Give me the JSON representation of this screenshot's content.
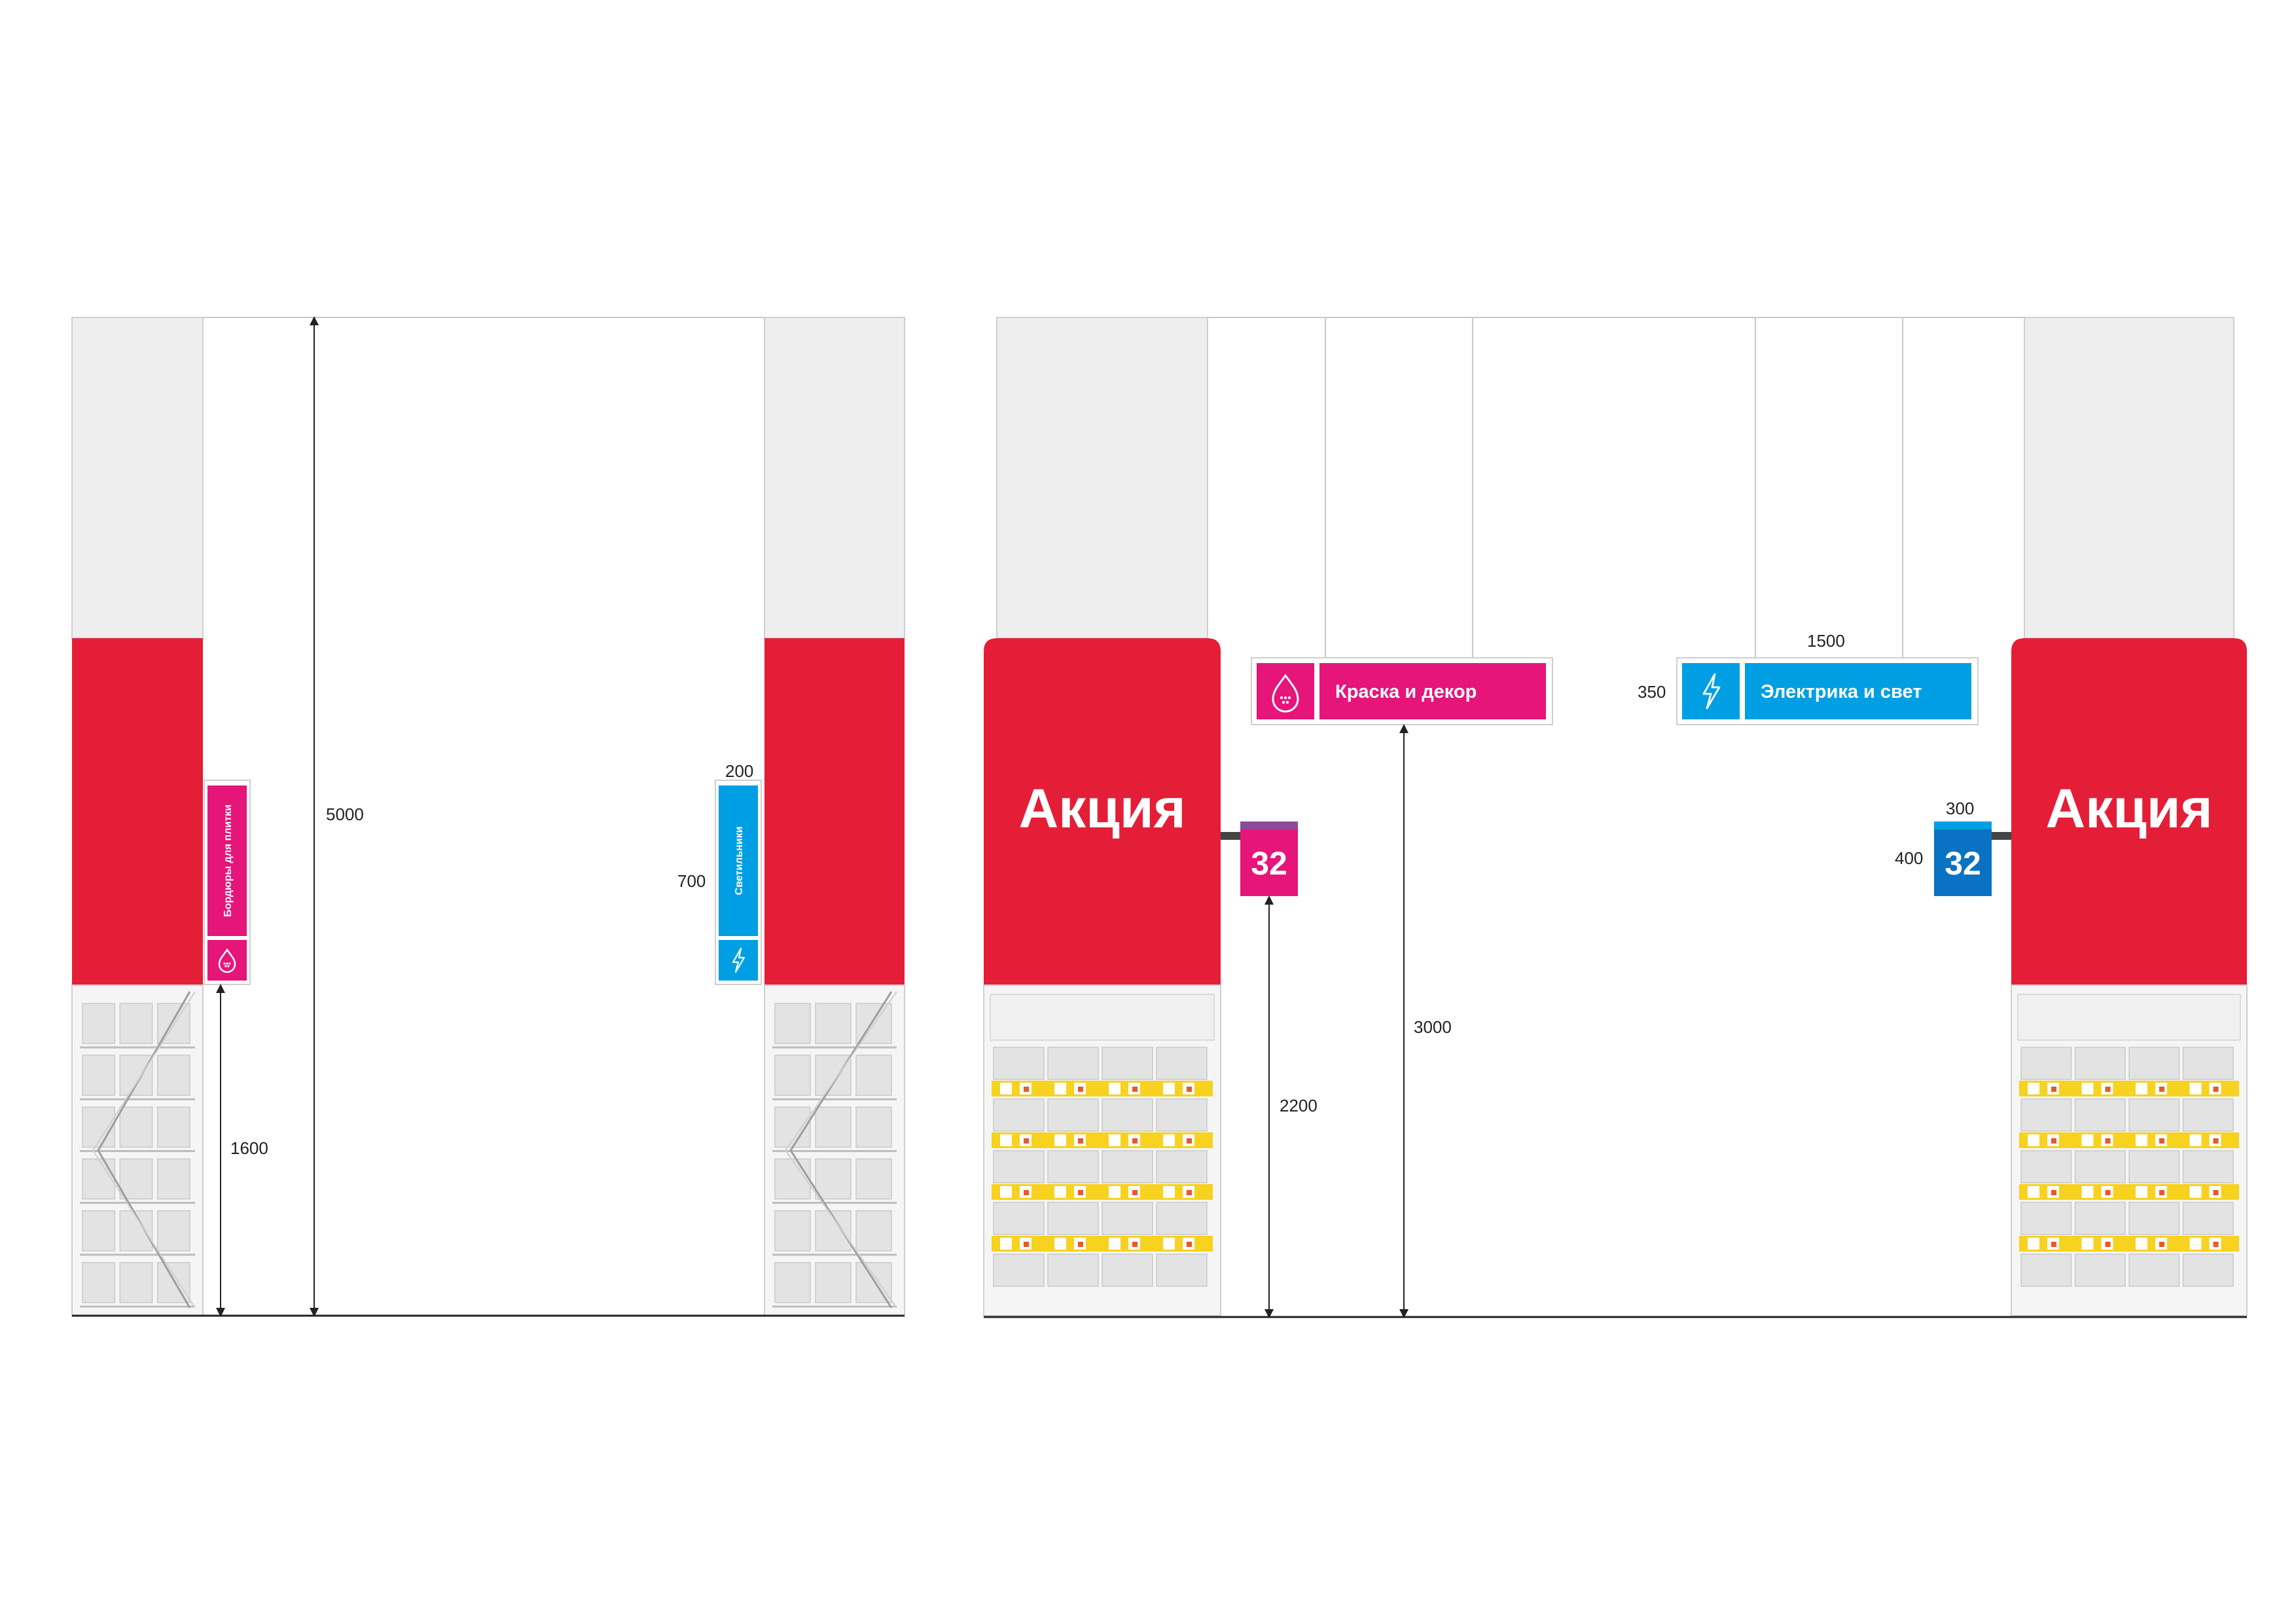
{
  "colors": {
    "promo_red": "#e41e37",
    "paint_magenta": "#e5157a",
    "electric_cyan": "#009fe3",
    "aisle_blue": "#0a72c3",
    "aisle_band_purple": "#8a4b9b",
    "price_yellow": "#f7d21e",
    "wall_grey": "#eeeeee",
    "shelf_grey": "#dddddd",
    "bracket_dark": "#444444"
  },
  "left_elevation": {
    "height_total": "5000",
    "sign_bottom_height": "1600",
    "sign_width": "200",
    "sign_height": "700",
    "sign_left": {
      "label": "Бордюры для плитки",
      "icon": "droplet-icon",
      "color": "#e5157a"
    },
    "sign_right": {
      "label": "Светильники",
      "icon": "lightning-icon",
      "color": "#009fe3"
    }
  },
  "right_elevation": {
    "promo_label_left": "Акция",
    "promo_label_right": "Акция",
    "aisle_number_left": "32",
    "aisle_number_right": "32",
    "aisle_sign_width": "300",
    "aisle_sign_height": "400",
    "aisle_sign_bottom_height": "2200",
    "hanging_sign_bottom_height": "3000",
    "hanging_sign_length": "1500",
    "hanging_sign_height": "350",
    "hanging_sign_left": {
      "label": "Краска и декор",
      "icon": "droplet-icon",
      "color": "#e5157a"
    },
    "hanging_sign_right": {
      "label": "Электрика и свет",
      "icon": "lightning-icon",
      "color": "#009fe3"
    }
  }
}
